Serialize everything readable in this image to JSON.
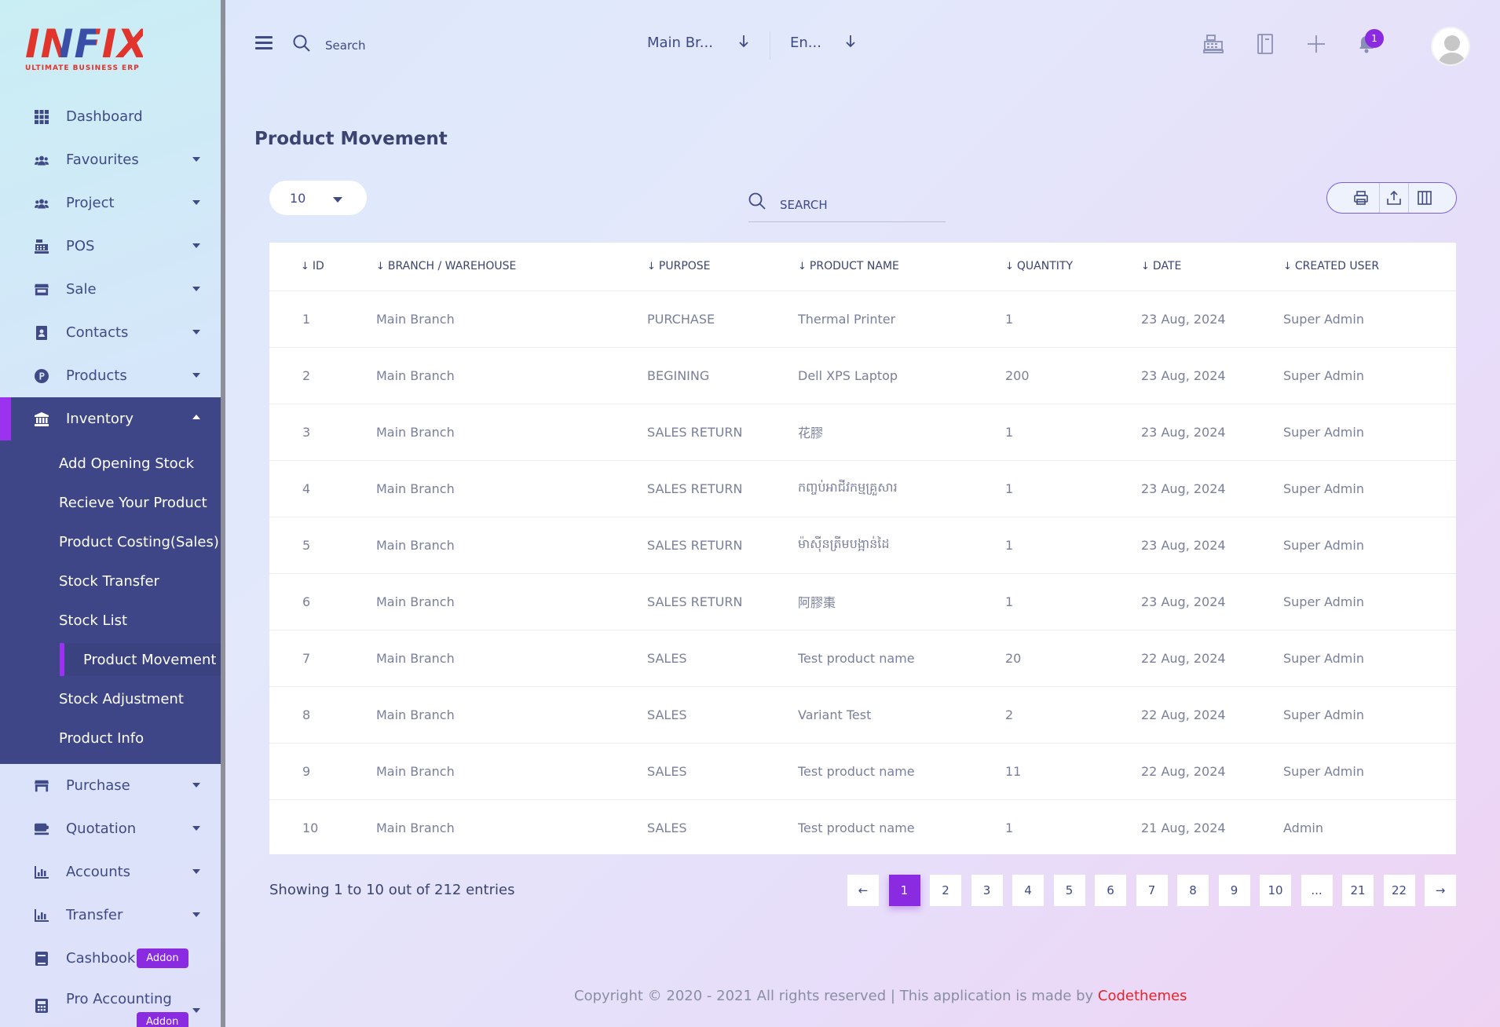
{
  "app": {
    "logo_text": "INFIX",
    "logo_subtitle": "ULTIMATE BUSINESS ERP"
  },
  "sidebar": {
    "items": [
      {
        "label": "Dashboard",
        "icon": "grid-icon"
      },
      {
        "label": "Favourites",
        "icon": "users-icon"
      },
      {
        "label": "Project",
        "icon": "users-icon"
      },
      {
        "label": "POS",
        "icon": "cash-register-icon"
      },
      {
        "label": "Sale",
        "icon": "store-icon"
      },
      {
        "label": "Contacts",
        "icon": "contact-book-icon"
      },
      {
        "label": "Products",
        "icon": "product-p-icon"
      },
      {
        "label": "Inventory",
        "icon": "bank-icon"
      },
      {
        "label": "Purchase",
        "icon": "store-icon"
      },
      {
        "label": "Quotation",
        "icon": "quote-icon"
      },
      {
        "label": "Accounts",
        "icon": "bar-chart-icon"
      },
      {
        "label": "Transfer",
        "icon": "bar-chart-icon"
      },
      {
        "label": "Cashbook",
        "icon": "book-icon"
      },
      {
        "label": "Pro Accounting",
        "icon": "calculator-icon"
      }
    ],
    "inventory_sub": [
      "Add Opening Stock",
      "Recieve Your Product",
      "Product Costing(Sales)",
      "Stock Transfer",
      "Stock List",
      "Product Movement",
      "Stock Adjustment",
      "Product Info"
    ],
    "addon_label": "Addon"
  },
  "header": {
    "search_placeholder": "Search",
    "branch": "Main Br...",
    "language": "En...",
    "notification_count": "1"
  },
  "page": {
    "title": "Product Movement",
    "page_length": "10",
    "search_placeholder": "SEARCH"
  },
  "table": {
    "columns": [
      "ID",
      "BRANCH / WAREHOUSE",
      "PURPOSE",
      "PRODUCT NAME",
      "QUANTITY",
      "DATE",
      "CREATED USER"
    ],
    "rows": [
      [
        "1",
        "Main Branch",
        "PURCHASE",
        "Thermal Printer",
        "1",
        "23 Aug, 2024",
        "Super Admin"
      ],
      [
        "2",
        "Main Branch",
        "BEGINING",
        "Dell XPS Laptop",
        "200",
        "23 Aug, 2024",
        "Super Admin"
      ],
      [
        "3",
        "Main Branch",
        "SALES RETURN",
        "花膠",
        "1",
        "23 Aug, 2024",
        "Super Admin"
      ],
      [
        "4",
        "Main Branch",
        "SALES RETURN",
        "កញ្ចប់អាជីវកម្មគ្រួសារ",
        "1",
        "23 Aug, 2024",
        "Super Admin"
      ],
      [
        "5",
        "Main Branch",
        "SALES RETURN",
        "ម៉ាស៊ីនត្រីមបង្អាន់ដៃ",
        "1",
        "23 Aug, 2024",
        "Super Admin"
      ],
      [
        "6",
        "Main Branch",
        "SALES RETURN",
        "阿膠棗",
        "1",
        "23 Aug, 2024",
        "Super Admin"
      ],
      [
        "7",
        "Main Branch",
        "SALES",
        "Test product name",
        "20",
        "22 Aug, 2024",
        "Super Admin"
      ],
      [
        "8",
        "Main Branch",
        "SALES",
        "Variant Test",
        "2",
        "22 Aug, 2024",
        "Super Admin"
      ],
      [
        "9",
        "Main Branch",
        "SALES",
        "Test product name",
        "11",
        "22 Aug, 2024",
        "Super Admin"
      ],
      [
        "10",
        "Main Branch",
        "SALES",
        "Test product name",
        "1",
        "21 Aug, 2024",
        "Admin"
      ]
    ]
  },
  "pagination": {
    "summary": "Showing 1 to 10 out of 212 entries",
    "prev": "←",
    "next": "→",
    "pages": [
      "1",
      "2",
      "3",
      "4",
      "5",
      "6",
      "7",
      "8",
      "9",
      "10",
      "...",
      "21",
      "22"
    ],
    "current": "1"
  },
  "footer": {
    "text": "Copyright © 2020 - 2021 All rights reserved | This application is made by ",
    "brand": "Codethemes"
  },
  "colors": {
    "accent": "#8a2be2",
    "sidebar_active": "#3e4687",
    "text_primary": "#3b4470",
    "footer_brand": "#e0262c"
  }
}
